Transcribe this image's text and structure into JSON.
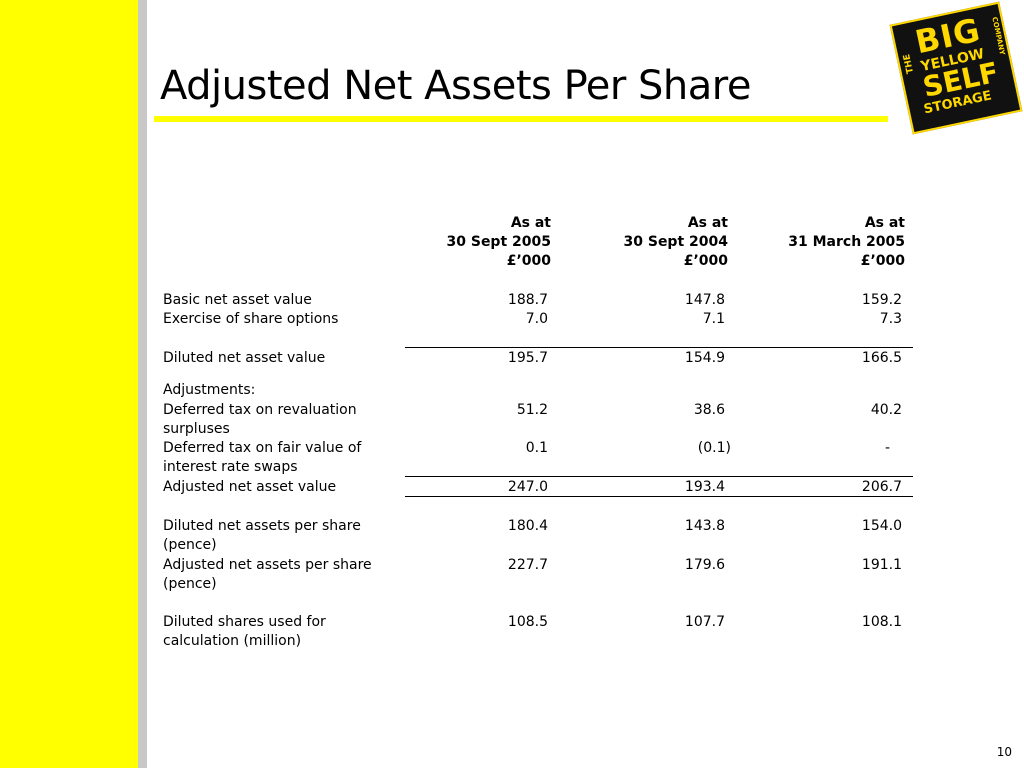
{
  "slide": {
    "title": "Adjusted Net Assets Per Share",
    "page_number": "10"
  },
  "logo": {
    "the": "THE",
    "big": "BIG",
    "yellow": "YELLOW",
    "self": "SELF",
    "storage": "STORAGE",
    "company": "COMPANY"
  },
  "columns": [
    {
      "line1": "As at",
      "line2": "30 Sept 2005",
      "line3": "£’000"
    },
    {
      "line1": "As at",
      "line2": "30 Sept 2004",
      "line3": "£’000"
    },
    {
      "line1": "As at",
      "line2": "31 March 2005",
      "line3": "£’000"
    }
  ],
  "rows": {
    "basic_nav": {
      "label": "Basic net asset value",
      "values": [
        "188.7",
        "147.8",
        "159.2"
      ]
    },
    "share_options": {
      "label": "Exercise of share options",
      "values": [
        "7.0",
        "7.1",
        "7.3"
      ]
    },
    "diluted_nav": {
      "label": "Diluted net asset value",
      "values": [
        "195.7",
        "154.9",
        "166.5"
      ]
    },
    "adjustments": {
      "label": "Adjustments:"
    },
    "deferred_tax_reval": {
      "label_line1": "Deferred tax on revaluation",
      "label_line2": "surpluses",
      "values": [
        "51.2",
        "38.6",
        "40.2"
      ]
    },
    "deferred_tax_swaps": {
      "label_line1": "Deferred tax on fair value of",
      "label_line2": "interest rate swaps",
      "values": [
        "0.1",
        "(0.1)",
        "-"
      ]
    },
    "adjusted_nav": {
      "label": "Adjusted net asset value",
      "values": [
        "247.0",
        "193.4",
        "206.7"
      ]
    },
    "diluted_nps": {
      "label_line1": "Diluted net assets per share",
      "label_line2": "(pence)",
      "values": [
        "180.4",
        "143.8",
        "154.0"
      ]
    },
    "adjusted_nps": {
      "label_line1": "Adjusted net assets per share",
      "label_line2": "(pence)",
      "values": [
        "227.7",
        "179.6",
        "191.1"
      ]
    },
    "diluted_shares": {
      "label_line1": "Diluted shares used for",
      "label_line2": "calculation (million)",
      "values": [
        "108.5",
        "107.7",
        "108.1"
      ]
    }
  },
  "colors": {
    "accent_yellow": "#ffff00",
    "side_grey": "#c8c8c8",
    "logo_black": "#111111",
    "logo_yellow": "#ffd800"
  }
}
